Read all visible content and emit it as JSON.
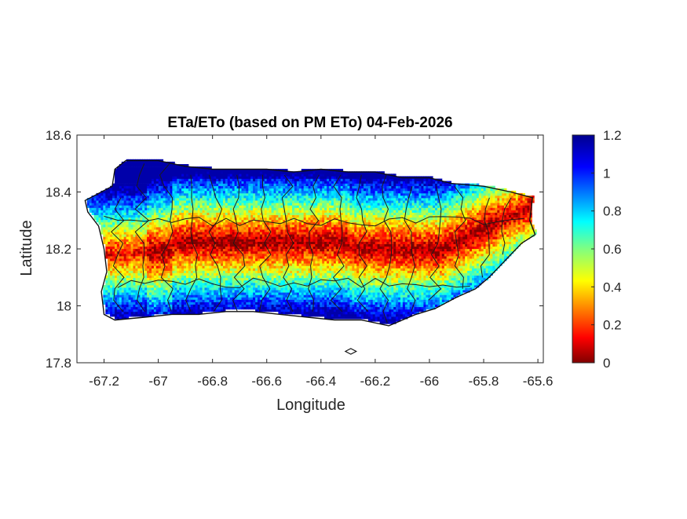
{
  "chart_data": {
    "type": "heatmap",
    "title": "ETa/ETo (based on PM ETo) 04-Feb-2026",
    "xlabel": "Longitude",
    "ylabel": "Latitude",
    "xlim": [
      -67.3,
      -65.58
    ],
    "ylim": [
      17.8,
      18.6
    ],
    "xticks": [
      -67.2,
      -67,
      -66.8,
      -66.6,
      -66.4,
      -66.2,
      -66,
      -65.8,
      -65.6
    ],
    "xtick_labels": [
      "-67.2",
      "-67",
      "-66.8",
      "-66.6",
      "-66.4",
      "-66.2",
      "-66",
      "-65.8",
      "-65.6"
    ],
    "yticks": [
      17.8,
      18,
      18.2,
      18.4,
      18.6
    ],
    "ytick_labels": [
      "17.8",
      "18",
      "18.2",
      "18.4",
      "18.6"
    ],
    "colorbar": {
      "colormap": "jet",
      "clim": [
        0,
        1.2
      ],
      "ticks": [
        0,
        0.2,
        0.4,
        0.6,
        0.8,
        1,
        1.2
      ],
      "tick_labels": [
        "0",
        "0.2",
        "0.4",
        "0.6",
        "0.8",
        "1",
        "1.2"
      ]
    },
    "grid": false,
    "legend": "none"
  }
}
